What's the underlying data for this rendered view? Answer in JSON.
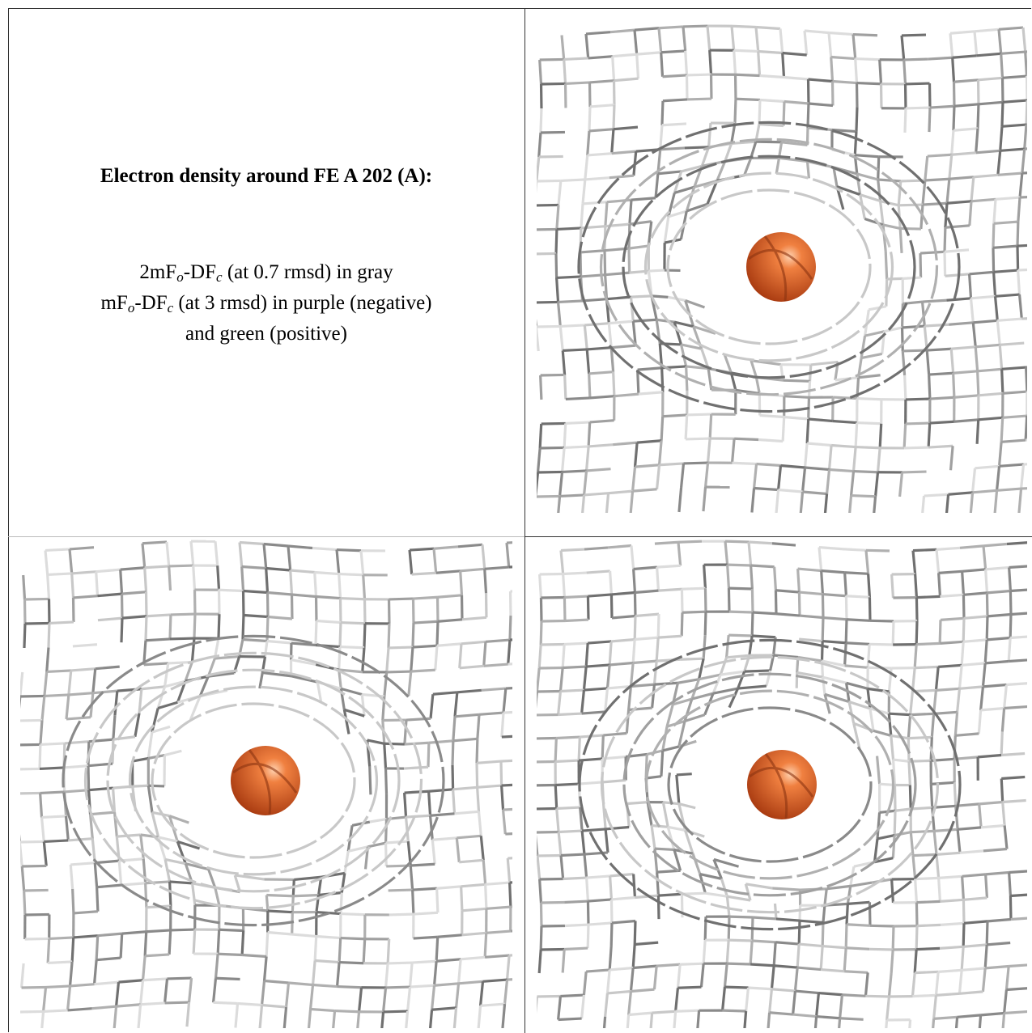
{
  "header": {
    "title": "Electron density around FE A 202 (A):"
  },
  "legend": [
    [
      "2mF",
      "o",
      "-DF",
      "c",
      " (at 0.7 rmsd) in gray"
    ],
    [
      "mF",
      "o",
      "-DF",
      "c",
      " (at 3 rmsd) in purple (negative)"
    ],
    [
      "and green (positive)"
    ]
  ]
}
